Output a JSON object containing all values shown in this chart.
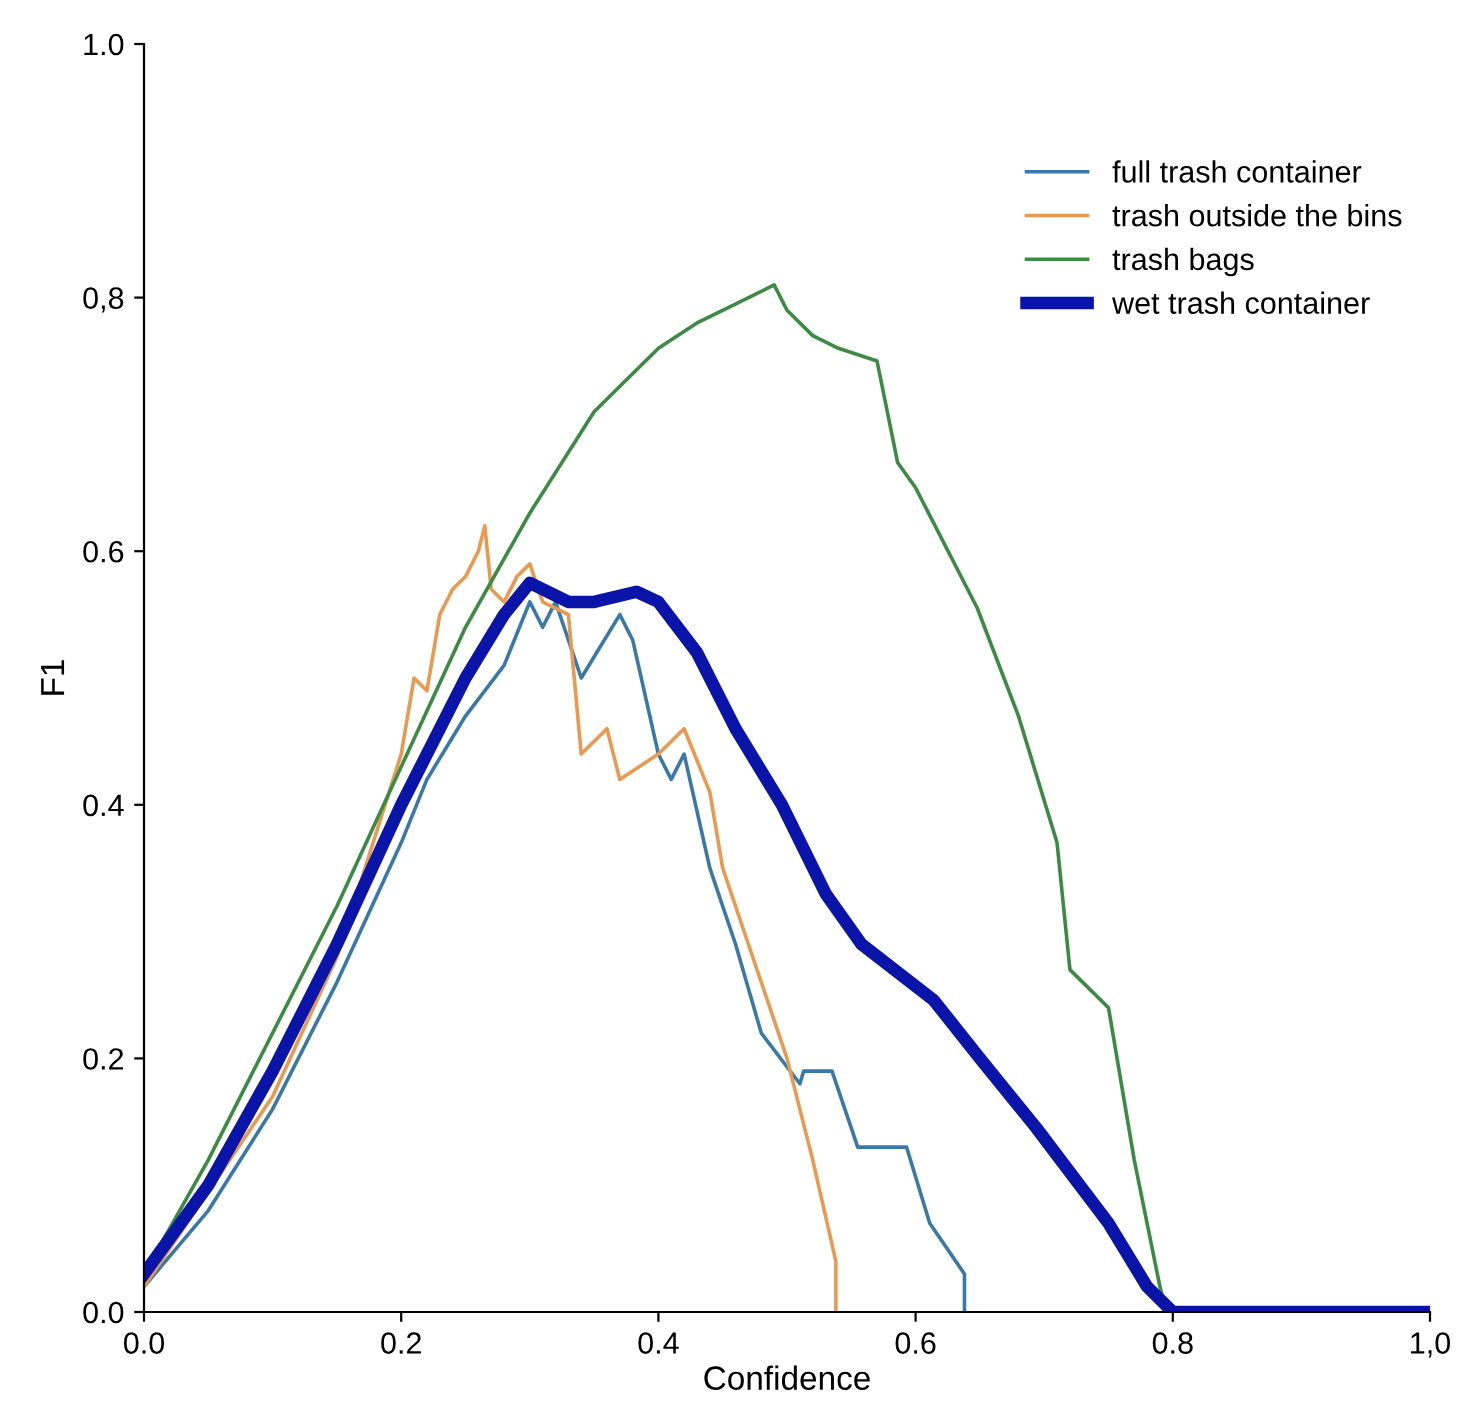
{
  "chart_data": {
    "type": "line",
    "xlabel": "Confidence",
    "ylabel": "F1",
    "xlim": [
      0,
      1
    ],
    "ylim": [
      0,
      1
    ],
    "xticks": [
      {
        "value": 0,
        "label": "0.0"
      },
      {
        "value": 0.2,
        "label": "0.2"
      },
      {
        "value": 0.4,
        "label": "0.4"
      },
      {
        "value": 0.6,
        "label": "0.6"
      },
      {
        "value": 0.8,
        "label": "0.8"
      },
      {
        "value": 1,
        "label": "1,0"
      }
    ],
    "yticks": [
      {
        "value": 0,
        "label": "0.0"
      },
      {
        "value": 0.2,
        "label": "0.2"
      },
      {
        "value": 0.4,
        "label": "0.4"
      },
      {
        "value": 0.6,
        "label": "0.6"
      },
      {
        "value": 0.8,
        "label": "0,8"
      },
      {
        "value": 1,
        "label": "1.0"
      }
    ],
    "grid": false,
    "legend": "top right",
    "marker": "none",
    "line_style": "solid",
    "series": [
      {
        "name": "full trash container",
        "color": "#3a78a8",
        "x": [
          0,
          0.05,
          0.1,
          0.15,
          0.2,
          0.22,
          0.25,
          0.28,
          0.3,
          0.31,
          0.32,
          0.34,
          0.37,
          0.38,
          0.4,
          0.41,
          0.42,
          0.44,
          0.46,
          0.48,
          0.51,
          0.513,
          0.535,
          0.555,
          0.593,
          0.611,
          0.638,
          0.638
        ],
        "values": [
          0.02,
          0.08,
          0.16,
          0.26,
          0.37,
          0.42,
          0.47,
          0.51,
          0.56,
          0.54,
          0.56,
          0.5,
          0.55,
          0.53,
          0.44,
          0.42,
          0.44,
          0.35,
          0.29,
          0.22,
          0.18,
          0.19,
          0.19,
          0.13,
          0.13,
          0.07,
          0.03,
          0
        ]
      },
      {
        "name": "trash outside the bins",
        "color": "#e89a50",
        "x": [
          0,
          0.1,
          0.15,
          0.2,
          0.21,
          0.22,
          0.23,
          0.24,
          0.25,
          0.26,
          0.265,
          0.27,
          0.28,
          0.29,
          0.3,
          0.31,
          0.33,
          0.34,
          0.36,
          0.37,
          0.4,
          0.42,
          0.44,
          0.45,
          0.47,
          0.5,
          0.52,
          0.538,
          0.538
        ],
        "values": [
          0.02,
          0.17,
          0.28,
          0.44,
          0.5,
          0.49,
          0.55,
          0.57,
          0.58,
          0.6,
          0.62,
          0.57,
          0.56,
          0.58,
          0.59,
          0.56,
          0.55,
          0.44,
          0.46,
          0.42,
          0.44,
          0.46,
          0.41,
          0.35,
          0.29,
          0.2,
          0.12,
          0.04,
          0
        ]
      },
      {
        "name": "trash bags",
        "color": "#3d8a45",
        "x": [
          0,
          0.05,
          0.1,
          0.15,
          0.2,
          0.25,
          0.3,
          0.35,
          0.4,
          0.43,
          0.45,
          0.49,
          0.5,
          0.52,
          0.54,
          0.57,
          0.586,
          0.6,
          0.648,
          0.68,
          0.71,
          0.72,
          0.75,
          0.77,
          0.79,
          0.795
        ],
        "values": [
          0.03,
          0.12,
          0.22,
          0.32,
          0.43,
          0.54,
          0.63,
          0.71,
          0.76,
          0.78,
          0.79,
          0.81,
          0.79,
          0.77,
          0.76,
          0.75,
          0.67,
          0.65,
          0.555,
          0.47,
          0.37,
          0.27,
          0.24,
          0.12,
          0.02,
          0
        ]
      },
      {
        "name": "wet trash container",
        "color": "#0a14a8",
        "x": [
          0,
          0.05,
          0.1,
          0.15,
          0.2,
          0.25,
          0.28,
          0.3,
          0.33,
          0.35,
          0.383,
          0.4,
          0.43,
          0.46,
          0.496,
          0.53,
          0.558,
          0.614,
          0.65,
          0.694,
          0.75,
          0.78,
          0.8,
          0.85,
          1.0
        ],
        "values": [
          0.03,
          0.1,
          0.19,
          0.29,
          0.4,
          0.5,
          0.55,
          0.575,
          0.56,
          0.56,
          0.568,
          0.56,
          0.52,
          0.46,
          0.4,
          0.33,
          0.29,
          0.246,
          0.2,
          0.145,
          0.07,
          0.02,
          0,
          0,
          0
        ]
      }
    ]
  }
}
